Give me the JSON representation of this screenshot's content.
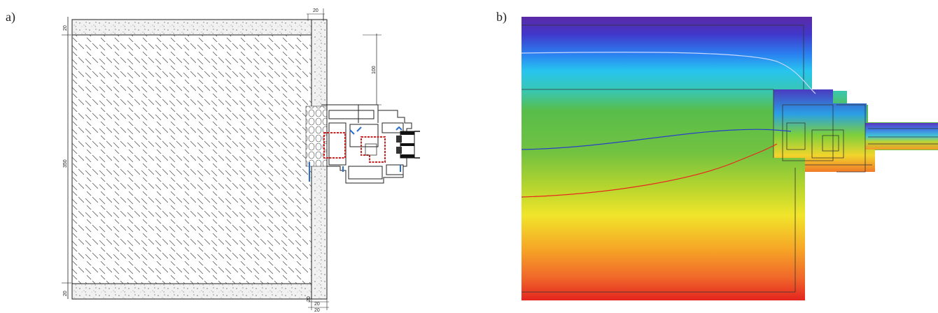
{
  "panels": {
    "a": {
      "label": "a)"
    },
    "b": {
      "label": "b)"
    }
  },
  "dimensions": {
    "top_wall": "20",
    "bottom_wall": "20",
    "slab_height": "350",
    "frame_offset": "100",
    "right_wall_top": "20",
    "right_wall_bottom": "20",
    "corner_bottom_a": "20",
    "corner_bottom_b": "20"
  },
  "colors": {
    "concrete": "#eeeeee",
    "insulation_hatch": "#555555",
    "reinforcement": "#cc2222",
    "gasket": "#2a6fcc",
    "glass": "#111111",
    "isotherm_cold": "#5a2aa8",
    "isotherm_warm": "#e8261e"
  }
}
